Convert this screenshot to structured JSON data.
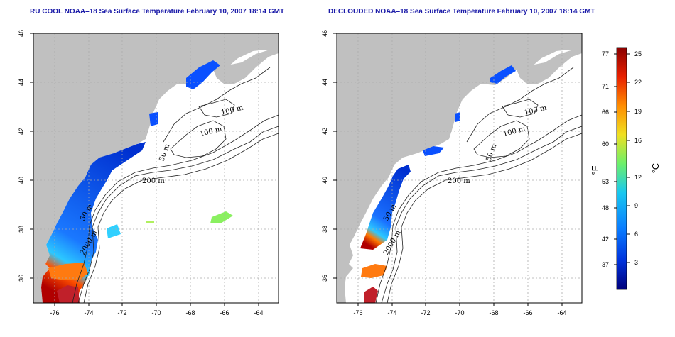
{
  "panels": [
    {
      "id": "left",
      "title": "RU COOL NOAA–18 Sea Surface Temperature February 10, 2007 18:14 GMT"
    },
    {
      "id": "right",
      "title": "DECLOUDED NOAA–18 Sea Surface Temperature February 10, 2007 18:14 GMT"
    }
  ],
  "map": {
    "x_ticks": [
      "-76",
      "-74",
      "-72",
      "-70",
      "-68",
      "-66",
      "-64"
    ],
    "y_ticks": [
      "46",
      "44",
      "42",
      "40",
      "38",
      "36"
    ],
    "contour_labels": [
      "100 m",
      "100 m",
      "50 m",
      "200 m",
      "50 m",
      "2000 m"
    ],
    "land_color": "#c0c0c0",
    "grid_color": "#aaaaaa"
  },
  "colorbar": {
    "fahrenheit_ticks": [
      "77",
      "71",
      "66",
      "60",
      "53",
      "48",
      "42",
      "37"
    ],
    "celsius_ticks": [
      "25",
      "22",
      "19",
      "16",
      "12",
      "9",
      "6",
      "3"
    ],
    "fahrenheit_unit": "°F",
    "celsius_unit": "°C",
    "colors": [
      "#00007a",
      "#0033dd",
      "#0a7cff",
      "#18c8f0",
      "#6cf06a",
      "#f0e020",
      "#ff8c00",
      "#e82000",
      "#8a0000"
    ]
  }
}
